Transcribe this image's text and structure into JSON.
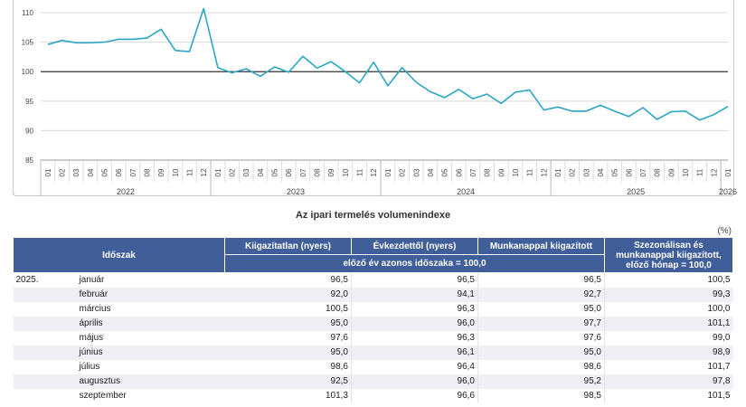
{
  "chart_data": {
    "type": "line",
    "y_ticks": [
      85,
      90,
      95,
      100,
      105,
      110
    ],
    "ylim": [
      85,
      112
    ],
    "reference_line": 100,
    "line_color": "#2aa6c4",
    "x": [
      "2022-01",
      "2022-02",
      "2022-03",
      "2022-04",
      "2022-05",
      "2022-06",
      "2022-07",
      "2022-08",
      "2022-09",
      "2022-10",
      "2022-11",
      "2022-12",
      "2023-01",
      "2023-02",
      "2023-03",
      "2023-04",
      "2023-05",
      "2023-06",
      "2023-07",
      "2023-08",
      "2023-09",
      "2023-10",
      "2023-11",
      "2023-12",
      "2024-01",
      "2024-02",
      "2024-03",
      "2024-04",
      "2024-05",
      "2024-06",
      "2024-07",
      "2024-08",
      "2024-09",
      "2024-10",
      "2024-11",
      "2024-12",
      "2025-01",
      "2025-02",
      "2025-03",
      "2025-04",
      "2025-05",
      "2025-06",
      "2025-07",
      "2025-08",
      "2025-09",
      "2025-10",
      "2025-11",
      "2025-12",
      "2026-01"
    ],
    "month_labels": [
      "01",
      "02",
      "03",
      "04",
      "05",
      "06",
      "07",
      "08",
      "09",
      "10",
      "11",
      "12",
      "01",
      "02",
      "03",
      "04",
      "05",
      "06",
      "07",
      "08",
      "09",
      "10",
      "11",
      "12",
      "01",
      "02",
      "03",
      "04",
      "05",
      "06",
      "07",
      "08",
      "09",
      "10",
      "11",
      "12",
      "01",
      "02",
      "03",
      "04",
      "05",
      "06",
      "07",
      "08",
      "09",
      "10",
      "11",
      "12",
      "01"
    ],
    "year_labels": [
      "2022",
      "2023",
      "2024",
      "2025",
      "2026"
    ],
    "values": [
      104.6,
      105.3,
      104.9,
      104.9,
      105.0,
      105.5,
      105.5,
      105.7,
      107.2,
      103.6,
      103.4,
      110.7,
      100.7,
      99.8,
      100.5,
      99.2,
      100.8,
      99.9,
      102.6,
      100.6,
      101.7,
      100.0,
      98.1,
      101.6,
      97.6,
      100.7,
      98.2,
      96.6,
      95.6,
      97.0,
      95.4,
      96.2,
      94.6,
      96.5,
      96.9,
      93.5,
      94.0,
      93.3,
      93.3,
      94.3,
      93.3,
      92.4,
      93.9,
      91.9,
      93.2,
      93.3,
      91.8,
      92.7,
      94.1
    ]
  },
  "table": {
    "title": "Az ipari termelés volumenindexe",
    "unit": "(%)",
    "headers": {
      "period": "Időszak",
      "col1": "Kiigazítatlan (nyers)",
      "col2": "Évkezdettől (nyers)",
      "col3": "Munkanappal kiigazított",
      "col4": "Szezonálisan és munkanappal kiigazított, előző hónap = 100,0",
      "sub": "előző év azonos időszaka = 100,0"
    },
    "rows": [
      {
        "year": "2025.",
        "month": "január",
        "v1": "96,5",
        "v2": "96,5",
        "v3": "96,5",
        "v4": "100,5"
      },
      {
        "year": "",
        "month": "február",
        "v1": "92,0",
        "v2": "94,1",
        "v3": "92,7",
        "v4": "99,3"
      },
      {
        "year": "",
        "month": "március",
        "v1": "100,5",
        "v2": "96,3",
        "v3": "95,0",
        "v4": "100,0"
      },
      {
        "year": "",
        "month": "április",
        "v1": "95,0",
        "v2": "96,0",
        "v3": "97,7",
        "v4": "101,1"
      },
      {
        "year": "",
        "month": "május",
        "v1": "97,6",
        "v2": "96,3",
        "v3": "97,6",
        "v4": "99,0"
      },
      {
        "year": "",
        "month": "június",
        "v1": "95,0",
        "v2": "96,1",
        "v3": "95,0",
        "v4": "98,9"
      },
      {
        "year": "",
        "month": "július",
        "v1": "98,6",
        "v2": "96,4",
        "v3": "98,6",
        "v4": "101,7"
      },
      {
        "year": "",
        "month": "augusztus",
        "v1": "92,5",
        "v2": "96,0",
        "v3": "95,2",
        "v4": "97,8"
      },
      {
        "year": "",
        "month": "szeptember",
        "v1": "101,3",
        "v2": "96,6",
        "v3": "98,5",
        "v4": "101,5"
      }
    ]
  }
}
